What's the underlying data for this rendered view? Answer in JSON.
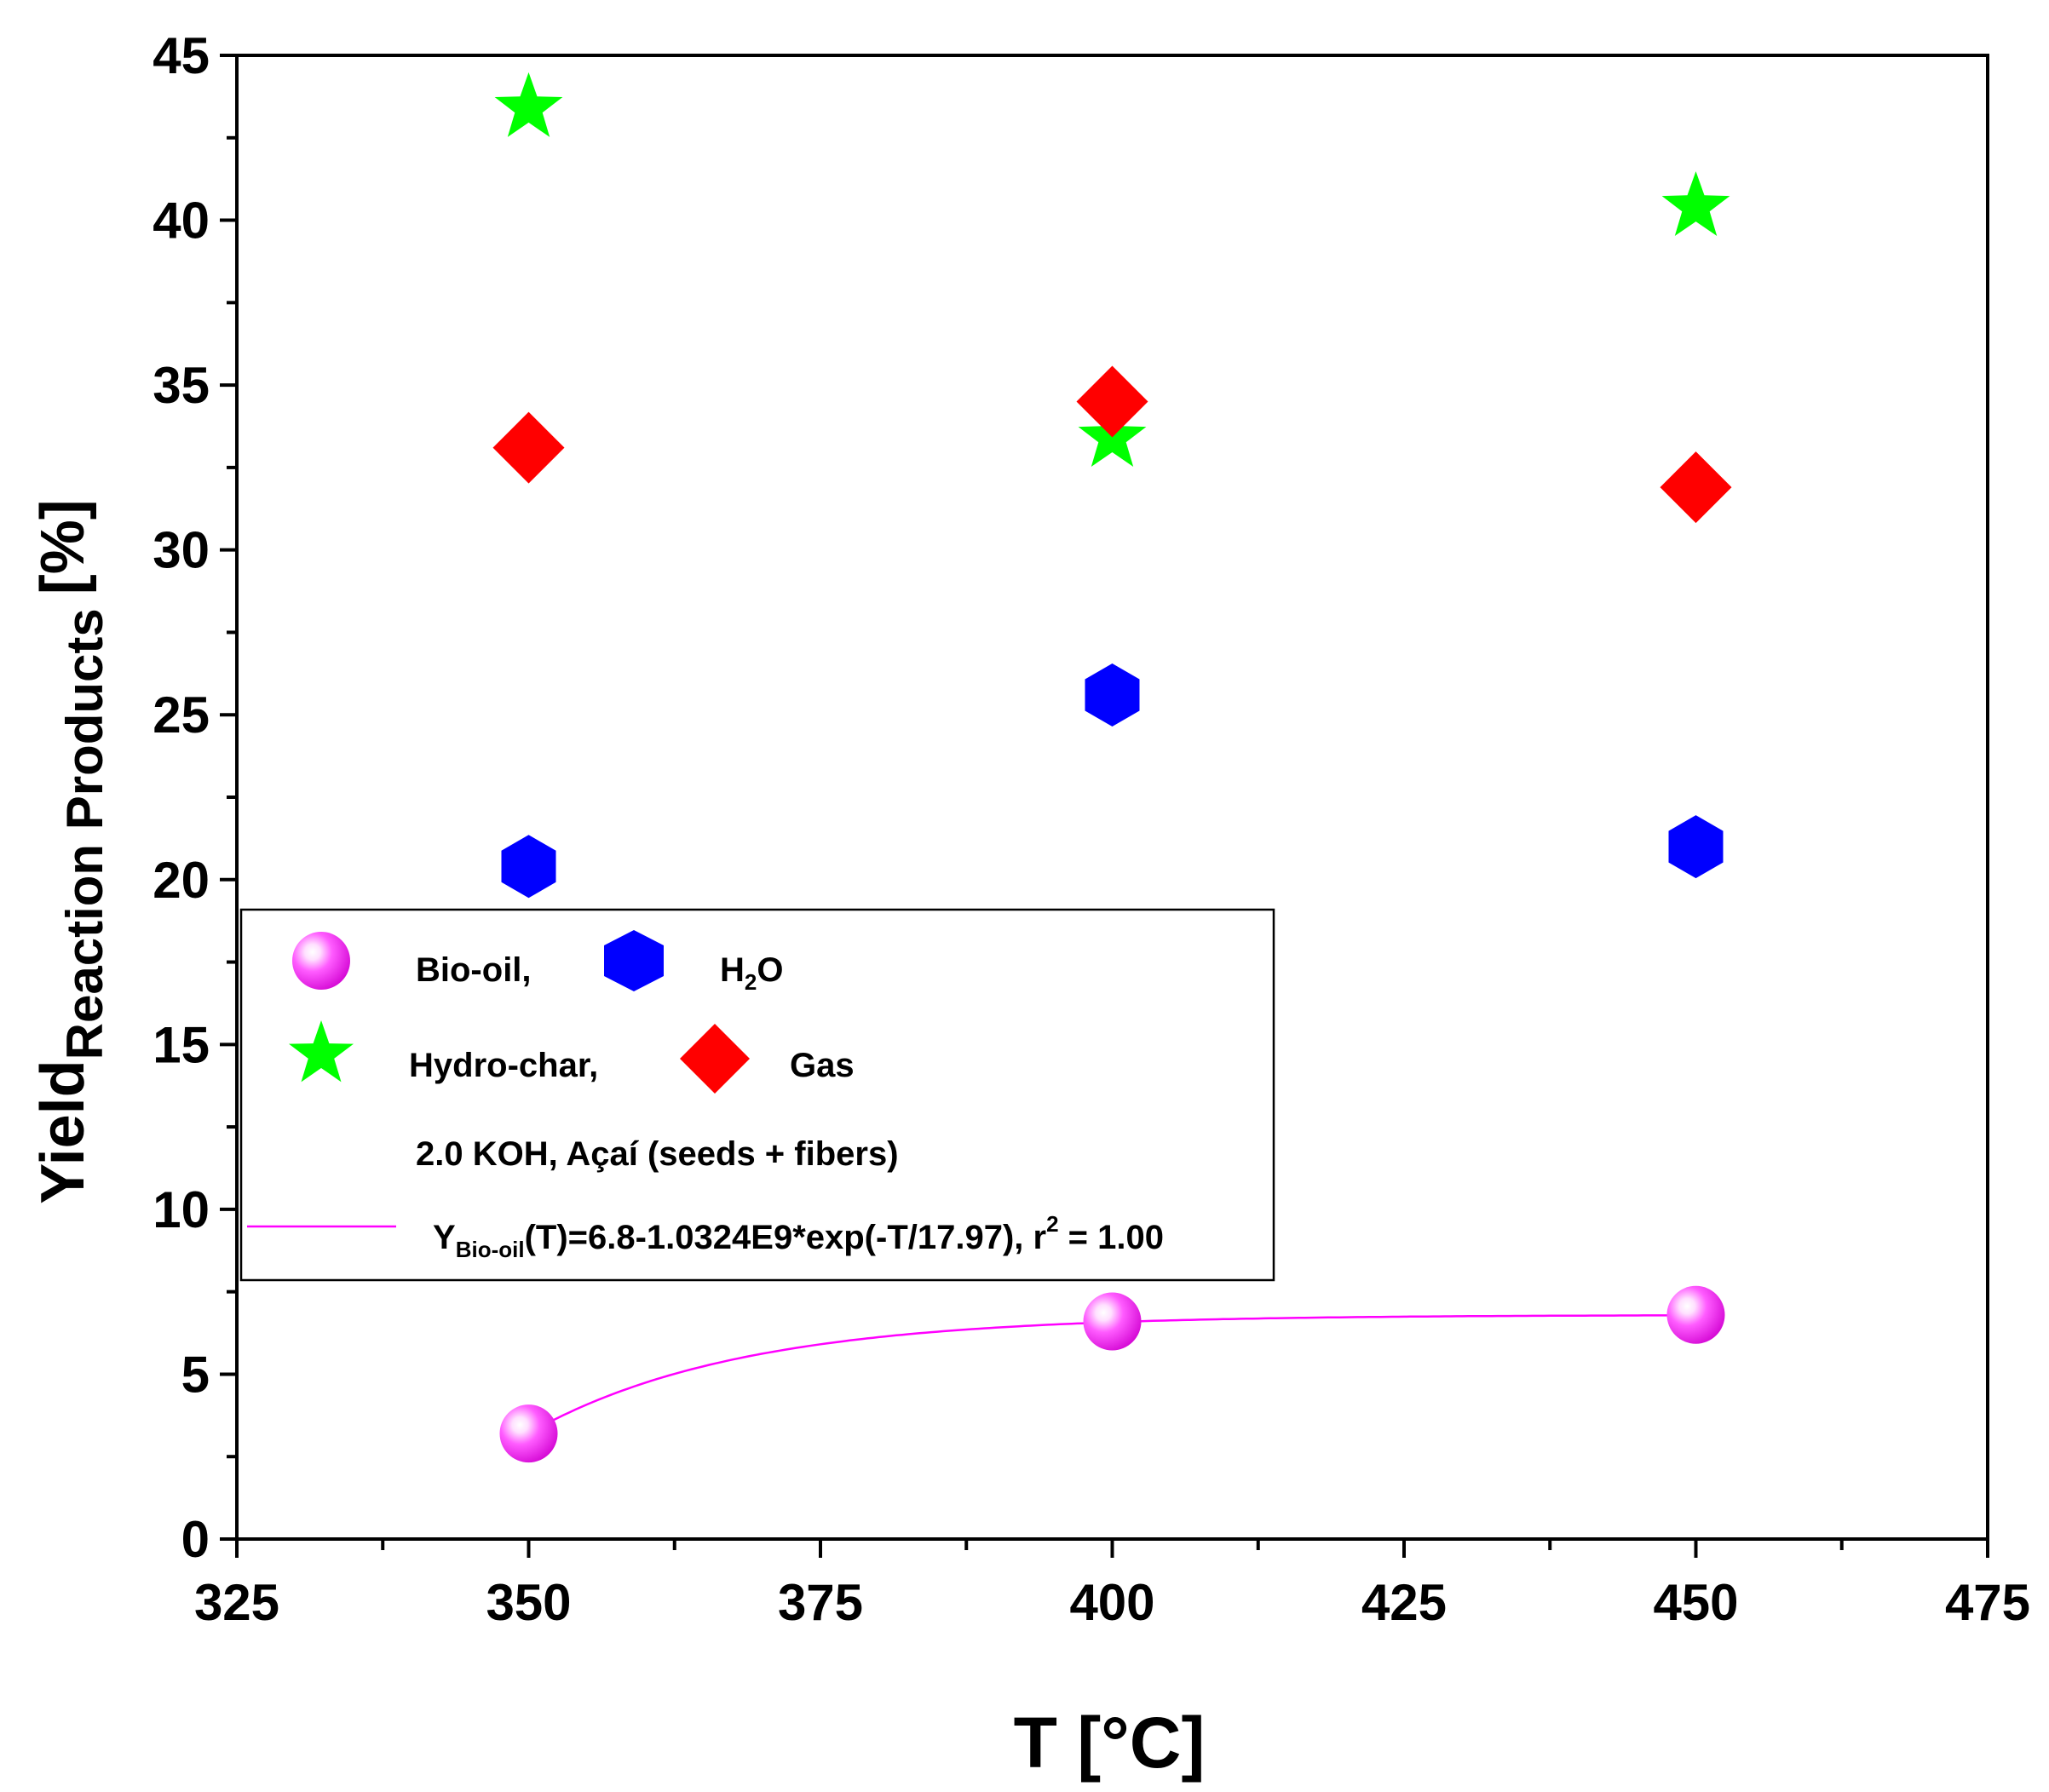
{
  "chart_data": {
    "type": "scatter",
    "xlabel": "T [°C]",
    "ylabel": {
      "main": "Yield",
      "subscript": "Reaction Products",
      "unit": "[%]"
    },
    "xlim": [
      325,
      475
    ],
    "ylim": [
      0,
      45
    ],
    "x_ticks": [
      "325",
      "350",
      "375",
      "400",
      "425",
      "450",
      "475"
    ],
    "y_ticks": [
      "0",
      "5",
      "10",
      "15",
      "20",
      "25",
      "30",
      "35",
      "40",
      "45"
    ],
    "series": [
      {
        "name": "Bio-oil,",
        "marker": "sphere",
        "color": "#ff00ff",
        "x": [
          350,
          400,
          450
        ],
        "y": [
          3.2,
          6.6,
          6.8
        ]
      },
      {
        "name": "H2O",
        "marker": "hexagon",
        "color": "#0000ff",
        "x": [
          350,
          400,
          450
        ],
        "y": [
          20.4,
          25.6,
          21.0
        ]
      },
      {
        "name": "Hydro-char,",
        "marker": "star",
        "color": "#00ff00",
        "x": [
          350,
          400,
          450
        ],
        "y": [
          43.4,
          33.4,
          40.4
        ]
      },
      {
        "name": "Gas",
        "marker": "diamond",
        "color": "#ff0000",
        "x": [
          350,
          400,
          450
        ],
        "y": [
          33.1,
          34.5,
          31.9
        ]
      }
    ],
    "fit": {
      "a": 6.8,
      "b": 1032400000,
      "c": 17.97,
      "x_start": 350,
      "x_end": 450,
      "color": "#ff00ff"
    },
    "legend": {
      "bio_oil": "Bio-oil,",
      "h2o_main": "H",
      "h2o_sub": "2",
      "h2o_end": "O",
      "hydro_char": "Hydro-char,",
      "gas": "Gas",
      "note": "2.0 KOH, Açaí (seeds + fibers)",
      "fit_y": "Y",
      "fit_sub": "Bio-oil",
      "fit_mid": "(T)=6.8-1.0324E9*exp(-T/17.97), r",
      "fit_sup": "2",
      "fit_end": " = 1.00"
    }
  }
}
